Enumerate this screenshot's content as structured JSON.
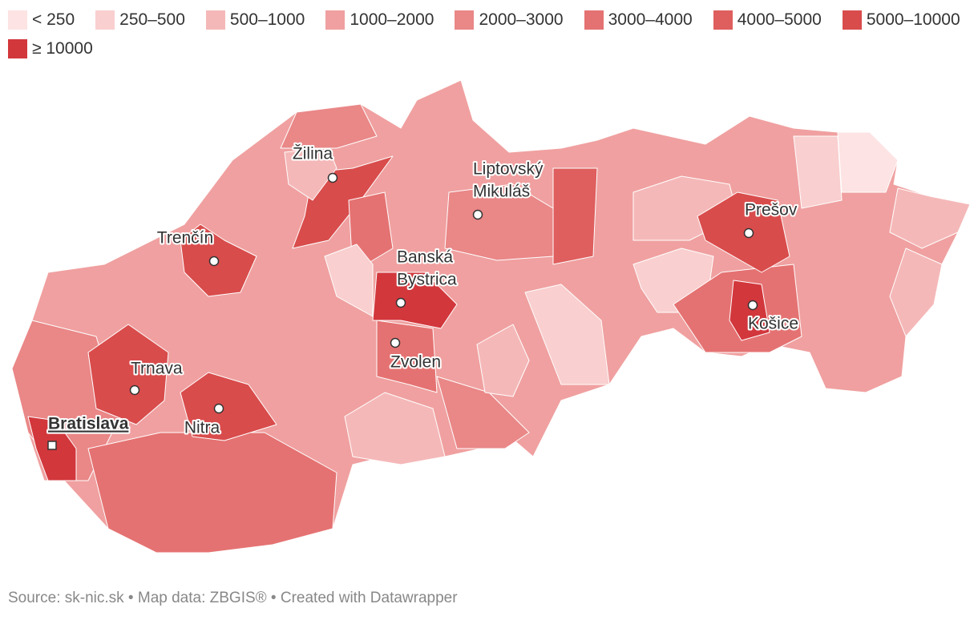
{
  "legend": [
    {
      "label": "< 250",
      "color": "#fde3e3"
    },
    {
      "label": "250–500",
      "color": "#f9cfcf"
    },
    {
      "label": "500–1000",
      "color": "#f5b8b8"
    },
    {
      "label": "1000–2000",
      "color": "#f0a0a0"
    },
    {
      "label": "2000–3000",
      "color": "#ea8787"
    },
    {
      "label": "3000–4000",
      "color": "#e57272"
    },
    {
      "label": "4000–5000",
      "color": "#df5e5e"
    },
    {
      "label": "5000–10000",
      "color": "#d94c4c"
    },
    {
      "label": "≥ 10000",
      "color": "#d2373c"
    }
  ],
  "cities": [
    {
      "lines": [
        "Žilina"
      ]
    },
    {
      "lines": [
        "Trenčín"
      ]
    },
    {
      "lines": [
        "Liptovský",
        "Mikuláš"
      ]
    },
    {
      "lines": [
        "Banská",
        "Bystrica"
      ]
    },
    {
      "lines": [
        "Zvolen"
      ]
    },
    {
      "lines": [
        "Trnava"
      ]
    },
    {
      "lines": [
        "Nitra"
      ]
    },
    {
      "lines": [
        "Bratislava"
      ]
    },
    {
      "lines": [
        "Prešov"
      ]
    },
    {
      "lines": [
        "Košice"
      ]
    }
  ],
  "footer": "Source: sk-nic.sk • Map data: ZBGIS® • Created with Datawrapper"
}
